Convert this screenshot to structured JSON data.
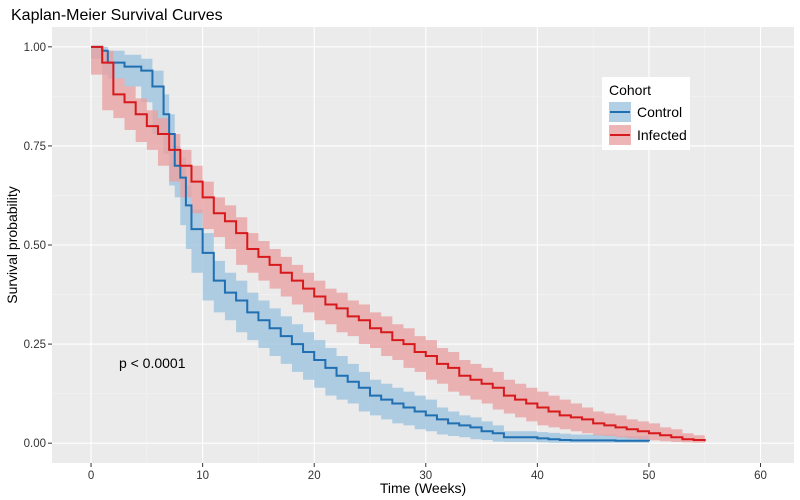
{
  "chart_data": {
    "type": "line",
    "title": "Kaplan-Meier Survival Curves",
    "xlabel": "Time (Weeks)",
    "ylabel": "Survival probability",
    "xlim": [
      -3.5,
      63
    ],
    "ylim": [
      -0.05,
      1.05
    ],
    "x_ticks": [
      0,
      10,
      20,
      30,
      40,
      50,
      60
    ],
    "y_ticks": [
      0.0,
      0.25,
      0.5,
      0.75,
      1.0
    ],
    "y_tick_labels": [
      "0.00",
      "0.25",
      "0.50",
      "0.75",
      "1.00"
    ],
    "grid": true,
    "step": true,
    "legend": {
      "title": "Cohort",
      "placement": "right-inside",
      "entries": [
        "Control",
        "Infected"
      ]
    },
    "annotations": [
      {
        "text": "p < 0.0001",
        "x": 2.5,
        "y": 0.19
      }
    ],
    "series": [
      {
        "name": "Control",
        "color": "#1f6fb2",
        "band_color": "#9ec3df",
        "x": [
          0,
          1,
          1.5,
          3,
          4.5,
          5.5,
          6.5,
          7,
          7.5,
          8,
          8.5,
          9,
          10,
          11,
          12,
          13,
          14,
          15,
          16,
          17,
          18,
          19,
          20,
          21,
          22,
          23,
          24,
          25,
          26,
          27,
          28,
          29,
          30,
          31,
          32,
          33,
          34,
          35,
          36,
          37,
          40,
          41,
          42,
          43,
          47,
          50
        ],
        "y": [
          1.0,
          0.99,
          0.96,
          0.95,
          0.94,
          0.9,
          0.83,
          0.78,
          0.7,
          0.67,
          0.6,
          0.54,
          0.48,
          0.41,
          0.38,
          0.36,
          0.33,
          0.31,
          0.29,
          0.27,
          0.25,
          0.23,
          0.21,
          0.19,
          0.17,
          0.155,
          0.14,
          0.12,
          0.11,
          0.1,
          0.09,
          0.08,
          0.07,
          0.06,
          0.05,
          0.045,
          0.04,
          0.03,
          0.025,
          0.015,
          0.012,
          0.01,
          0.008,
          0.007,
          0.006,
          0.005
        ],
        "lower": [
          1.0,
          0.97,
          0.93,
          0.92,
          0.9,
          0.86,
          0.78,
          0.73,
          0.65,
          0.62,
          0.55,
          0.49,
          0.43,
          0.36,
          0.33,
          0.31,
          0.28,
          0.26,
          0.24,
          0.22,
          0.2,
          0.18,
          0.16,
          0.14,
          0.12,
          0.11,
          0.1,
          0.08,
          0.07,
          0.06,
          0.05,
          0.045,
          0.035,
          0.03,
          0.022,
          0.018,
          0.015,
          0.01,
          0.008,
          0.004,
          0.003,
          0.002,
          0.001,
          0.001,
          0.001,
          0.001
        ],
        "upper": [
          1.0,
          1.0,
          0.99,
          0.98,
          0.97,
          0.94,
          0.88,
          0.83,
          0.75,
          0.72,
          0.65,
          0.59,
          0.53,
          0.46,
          0.43,
          0.41,
          0.38,
          0.36,
          0.34,
          0.32,
          0.3,
          0.28,
          0.26,
          0.24,
          0.22,
          0.2,
          0.18,
          0.16,
          0.15,
          0.14,
          0.13,
          0.12,
          0.11,
          0.09,
          0.08,
          0.07,
          0.065,
          0.055,
          0.045,
          0.03,
          0.028,
          0.026,
          0.024,
          0.022,
          0.018,
          0.015
        ]
      },
      {
        "name": "Infected",
        "color": "#d7191c",
        "band_color": "#e8a3a3",
        "x": [
          0,
          1,
          2,
          3,
          4,
          5,
          6,
          7,
          8,
          9,
          10,
          11,
          12,
          13,
          14,
          15,
          16,
          17,
          18,
          19,
          20,
          21,
          22,
          23,
          24,
          25,
          26,
          27,
          28,
          29,
          30,
          31,
          32,
          33,
          34,
          35,
          36,
          37,
          38,
          39,
          40,
          41,
          42,
          43,
          44,
          45,
          46,
          47,
          48,
          49,
          50,
          51,
          52,
          53,
          54,
          55
        ],
        "y": [
          1.0,
          0.96,
          0.88,
          0.86,
          0.83,
          0.8,
          0.78,
          0.74,
          0.7,
          0.66,
          0.62,
          0.58,
          0.56,
          0.53,
          0.49,
          0.47,
          0.45,
          0.43,
          0.41,
          0.39,
          0.37,
          0.35,
          0.34,
          0.32,
          0.31,
          0.29,
          0.28,
          0.26,
          0.25,
          0.23,
          0.22,
          0.2,
          0.19,
          0.17,
          0.16,
          0.15,
          0.14,
          0.12,
          0.11,
          0.1,
          0.09,
          0.08,
          0.07,
          0.065,
          0.06,
          0.05,
          0.045,
          0.04,
          0.035,
          0.03,
          0.025,
          0.02,
          0.015,
          0.01,
          0.008,
          0.005
        ],
        "lower": [
          1.0,
          0.93,
          0.84,
          0.82,
          0.79,
          0.76,
          0.74,
          0.7,
          0.66,
          0.62,
          0.58,
          0.54,
          0.52,
          0.49,
          0.45,
          0.43,
          0.41,
          0.39,
          0.37,
          0.35,
          0.33,
          0.31,
          0.3,
          0.28,
          0.27,
          0.25,
          0.24,
          0.22,
          0.21,
          0.19,
          0.18,
          0.16,
          0.15,
          0.13,
          0.12,
          0.11,
          0.1,
          0.085,
          0.075,
          0.065,
          0.055,
          0.045,
          0.04,
          0.035,
          0.03,
          0.025,
          0.02,
          0.018,
          0.015,
          0.012,
          0.01,
          0.007,
          0.005,
          0.003,
          0.002,
          0.001
        ],
        "upper": [
          1.0,
          0.99,
          0.92,
          0.9,
          0.87,
          0.84,
          0.82,
          0.78,
          0.74,
          0.7,
          0.66,
          0.62,
          0.6,
          0.57,
          0.53,
          0.51,
          0.49,
          0.47,
          0.45,
          0.43,
          0.41,
          0.39,
          0.38,
          0.36,
          0.35,
          0.33,
          0.32,
          0.3,
          0.29,
          0.27,
          0.26,
          0.24,
          0.23,
          0.21,
          0.2,
          0.19,
          0.18,
          0.16,
          0.15,
          0.14,
          0.13,
          0.12,
          0.11,
          0.1,
          0.09,
          0.08,
          0.075,
          0.07,
          0.06,
          0.055,
          0.05,
          0.04,
          0.035,
          0.025,
          0.02,
          0.015
        ]
      }
    ]
  }
}
